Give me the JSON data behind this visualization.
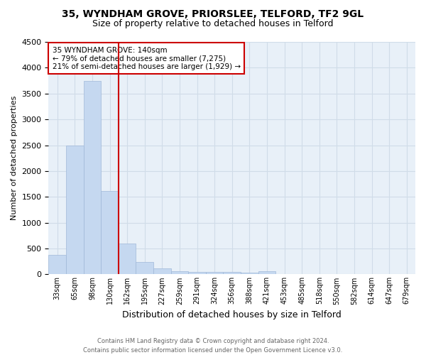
{
  "title_line1": "35, WYNDHAM GROVE, PRIORSLEE, TELFORD, TF2 9GL",
  "title_line2": "Size of property relative to detached houses in Telford",
  "xlabel": "Distribution of detached houses by size in Telford",
  "ylabel": "Number of detached properties",
  "bin_labels": [
    "33sqm",
    "65sqm",
    "98sqm",
    "130sqm",
    "162sqm",
    "195sqm",
    "227sqm",
    "259sqm",
    "291sqm",
    "324sqm",
    "356sqm",
    "388sqm",
    "421sqm",
    "453sqm",
    "485sqm",
    "518sqm",
    "550sqm",
    "582sqm",
    "614sqm",
    "647sqm",
    "679sqm"
  ],
  "bar_values": [
    380,
    2500,
    3750,
    1620,
    600,
    245,
    110,
    65,
    45,
    40,
    40,
    35,
    65,
    0,
    0,
    0,
    0,
    0,
    0,
    0,
    0
  ],
  "bar_color": "#c5d8f0",
  "bar_edge_color": "#a0b8d8",
  "vline_x_index": 3,
  "vline_color": "#cc0000",
  "annotation_line1": "35 WYNDHAM GROVE: 140sqm",
  "annotation_line2": "← 79% of detached houses are smaller (7,275)",
  "annotation_line3": "21% of semi-detached houses are larger (1,929) →",
  "annotation_box_color": "#cc0000",
  "ylim": [
    0,
    4500
  ],
  "grid_color": "#d0dce8",
  "background_color": "#e8f0f8",
  "footnote_line1": "Contains HM Land Registry data © Crown copyright and database right 2024.",
  "footnote_line2": "Contains public sector information licensed under the Open Government Licence v3.0."
}
